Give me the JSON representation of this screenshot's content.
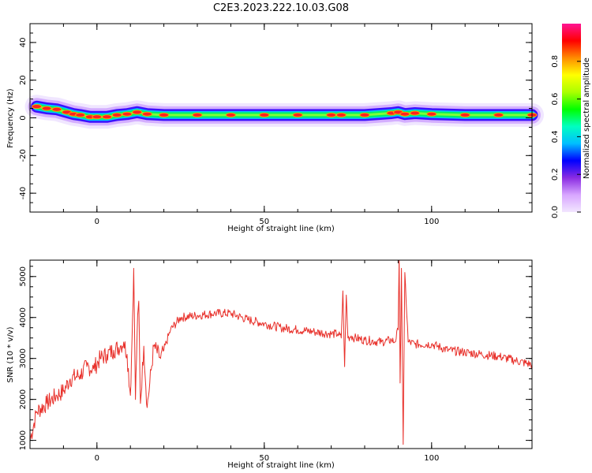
{
  "figure_title": "C2E3.2023.222.10.03.G08",
  "chart_data": [
    {
      "type": "heatmap",
      "title": "C2E3.2023.222.10.03.G08",
      "xlabel": "Height of straight line (km)",
      "ylabel": "Frequency (Hz)",
      "xlim": [
        -20,
        130
      ],
      "ylim": [
        -50,
        50
      ],
      "x_ticks": [
        0,
        50,
        100
      ],
      "y_ticks": [
        -40,
        -20,
        0,
        20,
        40
      ],
      "colorbar": {
        "label": "Normalized spectral amplitude",
        "range": [
          0,
          1
        ],
        "ticks": [
          0.0,
          0.2,
          0.4,
          0.6,
          0.8
        ],
        "colors": [
          "#f2e6ff",
          "#d8a6ff",
          "#8a2be2",
          "#0000ff",
          "#00bfff",
          "#00ffc0",
          "#00ff00",
          "#aaff00",
          "#ffff00",
          "#ff8c00",
          "#ff0000",
          "#ff1493"
        ]
      },
      "dominant_frequency_track": {
        "x": [
          -18,
          -15,
          -12,
          -9,
          -7,
          -5,
          -2,
          0,
          3,
          6,
          9,
          12,
          15,
          20,
          30,
          40,
          50,
          60,
          70,
          73,
          80,
          88,
          90,
          92,
          95,
          100,
          110,
          120,
          130
        ],
        "y": [
          6,
          5,
          4.5,
          3,
          2,
          1.5,
          0.5,
          0.5,
          0.5,
          1.5,
          2,
          3,
          2,
          1.5,
          1.5,
          1.5,
          1.5,
          1.5,
          1.5,
          1.5,
          1.5,
          2.5,
          3,
          2,
          2.5,
          2,
          1.5,
          1.5,
          1.5
        ]
      },
      "grid": false
    },
    {
      "type": "line",
      "xlabel": "Height of straight line (km)",
      "ylabel": "SNR (10 * v/v)",
      "xlim": [
        -20,
        130
      ],
      "ylim": [
        800,
        5400
      ],
      "x_ticks": [
        0,
        50,
        100
      ],
      "y_ticks": [
        1000,
        2000,
        3000,
        4000,
        5000
      ],
      "color": "#e8302a",
      "x": [
        -20,
        -18,
        -15,
        -12,
        -10,
        -8,
        -5,
        -3,
        -1,
        1,
        3,
        5,
        7,
        8,
        9,
        10,
        10.5,
        11,
        11.5,
        12,
        12.5,
        13,
        14,
        15,
        17,
        19,
        20,
        22,
        25,
        30,
        35,
        40,
        45,
        50,
        55,
        60,
        65,
        70,
        72,
        73,
        73.5,
        74,
        74.5,
        75,
        76,
        77,
        80,
        85,
        88,
        89,
        90,
        90.3,
        90.6,
        91,
        91.5,
        92,
        93,
        95,
        100,
        105,
        110,
        115,
        120,
        125,
        130
      ],
      "y": [
        1000,
        1700,
        1900,
        2100,
        2200,
        2500,
        2600,
        2800,
        2750,
        3000,
        3100,
        3200,
        3300,
        3400,
        3100,
        2100,
        3500,
        5200,
        2000,
        3600,
        4400,
        1900,
        3300,
        1800,
        3300,
        3000,
        3200,
        3700,
        4000,
        4050,
        4100,
        4100,
        3950,
        3850,
        3750,
        3700,
        3650,
        3600,
        3600,
        3500,
        4650,
        2800,
        4550,
        3500,
        3550,
        3500,
        3450,
        3400,
        3450,
        3400,
        3700,
        5500,
        2400,
        5200,
        900,
        5100,
        3400,
        3350,
        3350,
        3200,
        3150,
        3100,
        3050,
        2950,
        2850
      ]
    }
  ]
}
